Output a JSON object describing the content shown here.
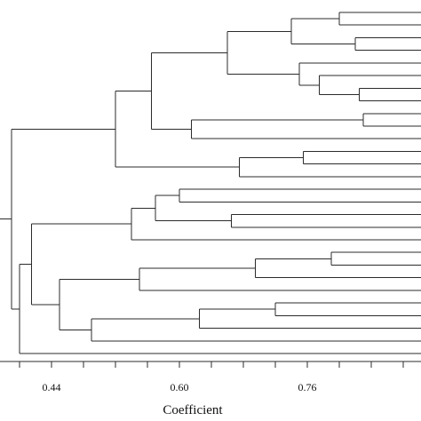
{
  "chart_data": {
    "type": "dendrogram",
    "xlabel": "Coefficient",
    "x_tick_labels": [
      "0.44",
      "0.60",
      "0.76"
    ],
    "x_tick_values": [
      0.44,
      0.6,
      0.76
    ],
    "xlim": [
      0.4,
      1.04
    ],
    "leaf_count": 28,
    "merges": [
      {
        "id": "n1",
        "height": 0.8,
        "children": [
          "L0",
          "L1"
        ]
      },
      {
        "id": "n2",
        "height": 0.82,
        "children": [
          "L2",
          "L3"
        ]
      },
      {
        "id": "n3",
        "height": 0.74,
        "children": [
          "n1",
          "n2"
        ]
      },
      {
        "id": "n4",
        "height": 0.825,
        "children": [
          "L6",
          "L7"
        ]
      },
      {
        "id": "n5",
        "height": 0.775,
        "children": [
          "L5",
          "n4"
        ]
      },
      {
        "id": "n6",
        "height": 0.75,
        "children": [
          "L4",
          "n5"
        ]
      },
      {
        "id": "n7",
        "height": 0.66,
        "children": [
          "n3",
          "n6"
        ]
      },
      {
        "id": "n8",
        "height": 0.83,
        "children": [
          "L8",
          "L9"
        ]
      },
      {
        "id": "n9",
        "height": 0.615,
        "children": [
          "n8",
          "L10"
        ]
      },
      {
        "id": "n10",
        "height": 0.565,
        "children": [
          "n7",
          "n9"
        ]
      },
      {
        "id": "n11",
        "height": 0.755,
        "children": [
          "L11",
          "L12"
        ]
      },
      {
        "id": "n12",
        "height": 0.675,
        "children": [
          "n11",
          "L13"
        ]
      },
      {
        "id": "n13",
        "height": 0.52,
        "children": [
          "n10",
          "n12"
        ]
      },
      {
        "id": "n14",
        "height": 0.6,
        "children": [
          "L14",
          "L15"
        ]
      },
      {
        "id": "n15",
        "height": 0.665,
        "children": [
          "L16",
          "L17"
        ]
      },
      {
        "id": "n16",
        "height": 0.57,
        "children": [
          "n14",
          "n15"
        ]
      },
      {
        "id": "n17",
        "height": 0.54,
        "children": [
          "n16",
          "L18"
        ]
      },
      {
        "id": "n18",
        "height": 0.79,
        "children": [
          "L19",
          "L20"
        ]
      },
      {
        "id": "n19",
        "height": 0.695,
        "children": [
          "n18",
          "L21"
        ]
      },
      {
        "id": "n20",
        "height": 0.55,
        "children": [
          "n19",
          "L22"
        ]
      },
      {
        "id": "n21",
        "height": 0.72,
        "children": [
          "L23",
          "L24"
        ]
      },
      {
        "id": "n22",
        "height": 0.625,
        "children": [
          "n21",
          "L25"
        ]
      },
      {
        "id": "n23",
        "height": 0.49,
        "children": [
          "n22",
          "L26"
        ]
      },
      {
        "id": "n24",
        "height": 0.45,
        "children": [
          "n20",
          "n23"
        ]
      },
      {
        "id": "n25",
        "height": 0.415,
        "children": [
          "n17",
          "n24"
        ]
      },
      {
        "id": "n26",
        "height": 0.4,
        "children": [
          "n25",
          "L27"
        ]
      },
      {
        "id": "n27",
        "height": 0.39,
        "children": [
          "n13",
          "n26"
        ]
      }
    ]
  }
}
